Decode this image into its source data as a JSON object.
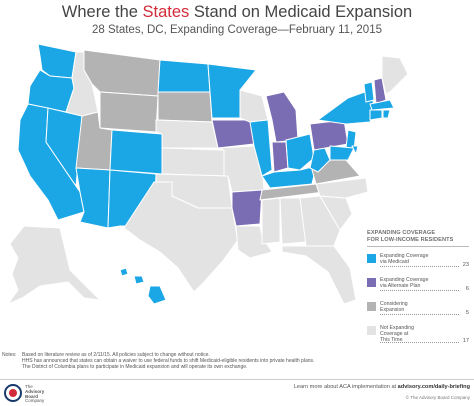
{
  "header": {
    "title_pre": "Where the ",
    "title_highlight": "States",
    "title_post": " Stand on Medicaid Expansion",
    "subtitle": "28 States, DC, Expanding Coverage—February 11, 2015"
  },
  "legend": {
    "heading_line1": "EXPANDING COVERAGE",
    "heading_line2": "FOR LOW-INCOME RESIDENTS",
    "items": [
      {
        "line1": "Expanding Coverage",
        "line2": "via Medicaid",
        "line3": "",
        "count": "23",
        "color": "#1ba6e6"
      },
      {
        "line1": "Expanding Coverage",
        "line2": "via Alternate Plan",
        "line3": "",
        "count": "6",
        "color": "#7b6db3"
      },
      {
        "line1": "Considering",
        "line2": "Expansion",
        "line3": "",
        "count": "5",
        "color": "#b3b3b3"
      },
      {
        "line1": "Not Expanding",
        "line2": "Coverage at",
        "line3": "This Time",
        "count": "17",
        "color": "#e3e3e3"
      }
    ]
  },
  "notes": {
    "label": "Notes:",
    "lines": [
      "Based on literature review as of 2/11/15. All policies subject to change without notice.",
      "HHS has announced that states can obtain a waiver to use federal funds to shift Medicaid-eligible residents into private health plans.",
      "The District of Columbia plans to participate in Medicaid expansion and will operate its own exchange."
    ]
  },
  "footer": {
    "logo_line1": "The",
    "logo_line2": "Advisory",
    "logo_line3": "Board",
    "logo_line4": "Company",
    "learn_text": "Learn more about ACA implementation at ",
    "learn_link": "advisory.com/daily-briefing",
    "copyright": "© The Advisory Board Company"
  },
  "map_colors": {
    "medicaid": "#1ba6e6",
    "alternate": "#7b6db3",
    "considering": "#b3b3b3",
    "not_expanding": "#e3e3e3",
    "border": "#ffffff"
  }
}
